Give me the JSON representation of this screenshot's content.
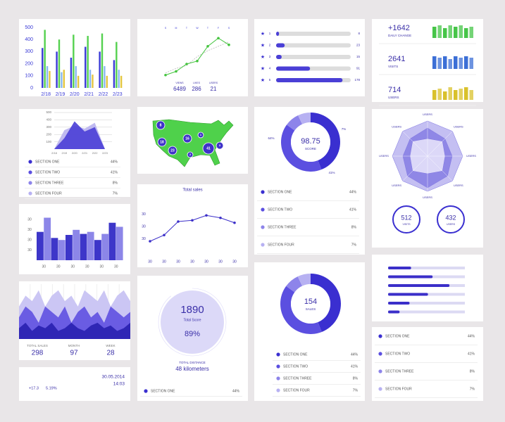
{
  "growth": {
    "type": "bar",
    "ylim": [
      0,
      500
    ],
    "yticks": [
      0,
      100,
      200,
      300,
      400,
      500
    ],
    "categories": [
      "2/18",
      "2/19",
      "2/20",
      "2/21",
      "2/22",
      "2/23"
    ],
    "series": [
      {
        "color": "#3a3ad6",
        "values": [
          330,
          300,
          250,
          340,
          300,
          230
        ]
      },
      {
        "color": "#55d14f",
        "values": [
          480,
          400,
          440,
          430,
          450,
          380
        ]
      },
      {
        "color": "#8ab8f2",
        "values": [
          180,
          130,
          180,
          150,
          180,
          150
        ]
      },
      {
        "color": "#e3c640",
        "values": [
          140,
          150,
          100,
          110,
          100,
          100
        ]
      }
    ]
  },
  "peaks": {
    "type": "area",
    "ylim": [
      0,
      500
    ],
    "yticks": [
      100,
      200,
      300,
      400,
      500
    ],
    "categories": [
      "2/18",
      "2/19",
      "2/20",
      "2/21",
      "2/22",
      "2/23"
    ],
    "series": [
      {
        "color": "#b9b3ee",
        "values": [
          0,
          260,
          320,
          280,
          360,
          0
        ]
      },
      {
        "color": "#4a3fd6",
        "values": [
          0,
          150,
          380,
          240,
          300,
          0
        ]
      }
    ],
    "legend": {
      "labels": [
        "SECTION ONE",
        "SECTION TWO",
        "SECTION THREE",
        "SECTION FOUR"
      ],
      "values": [
        44,
        41,
        8,
        7
      ],
      "value_labels": [
        "44%",
        "41%",
        "8%",
        "7%"
      ],
      "colors": [
        "#3a2fd0",
        "#5b4fe0",
        "#8d84ea",
        "#b7b1f2"
      ]
    }
  },
  "columns": {
    "type": "bar",
    "ylim": [
      0,
      50
    ],
    "yticks": [
      {
        "value": 10,
        "label": "30"
      },
      {
        "value": 20,
        "label": "30"
      },
      {
        "value": 30,
        "label": "30"
      },
      {
        "value": 40,
        "label": "30"
      }
    ],
    "categories": [
      "30",
      "30",
      "30",
      "30",
      "30",
      "30"
    ],
    "series": [
      {
        "color": "#3d36c9",
        "values": [
          28,
          22,
          25,
          26,
          20,
          37
        ]
      },
      {
        "color": "#8c86e8",
        "values": [
          42,
          20,
          30,
          28,
          26,
          33
        ]
      }
    ]
  },
  "waves": {
    "type": "area",
    "ylim": [
      0,
      10
    ],
    "series": [
      {
        "color": "#cbc6f4",
        "values": [
          6,
          8,
          7,
          9,
          6,
          8,
          9,
          7,
          8,
          6,
          9,
          8,
          7,
          9,
          6,
          8,
          9,
          7
        ]
      },
      {
        "color": "#6a5ce3",
        "values": [
          4,
          6,
          5,
          3,
          6,
          5,
          4,
          6,
          3,
          5,
          6,
          4,
          5,
          3,
          6,
          5,
          4,
          5
        ]
      },
      {
        "color": "#2f26b5",
        "values": [
          2,
          3,
          1.5,
          2.5,
          2,
          3,
          1.5,
          2,
          3,
          2,
          1.5,
          2.5,
          3,
          2,
          2.5,
          1.5,
          2,
          3
        ]
      }
    ],
    "stats": [
      {
        "label": "TOTAL SALES",
        "value": 298
      },
      {
        "label": "MONTH",
        "value": 97
      },
      {
        "label": "WEEK",
        "value": 28
      }
    ]
  },
  "ticker": {
    "date": "30.05.2014",
    "time": "14:03",
    "change": "+17.3",
    "percent": "5.19%"
  },
  "trend": {
    "type": "line",
    "categories": [
      "S",
      "M",
      "T",
      "W",
      "T",
      "F",
      "S"
    ],
    "ylim": [
      0,
      60
    ],
    "series": [
      {
        "color": "#44c43e",
        "values": [
          5,
          10,
          20,
          24,
          44,
          55,
          46
        ]
      },
      {
        "color": "#bbbbbb",
        "values": [
          8,
          14,
          18,
          30,
          38,
          44,
          50
        ]
      }
    ],
    "stats": [
      {
        "value": 6489,
        "label": "VIEWS"
      },
      {
        "value": 286,
        "label": "LIKES"
      },
      {
        "value": 21,
        "label": "USERS"
      }
    ]
  },
  "map": {
    "bubbles": [
      8,
      1,
      16,
      18,
      23,
      2,
      41,
      3
    ]
  },
  "sales": {
    "type": "line",
    "title": "Total sales",
    "ylim": [
      0,
      40
    ],
    "yticks": [
      {
        "value": 10,
        "label": "30"
      },
      {
        "value": 20,
        "label": "30"
      },
      {
        "value": 30,
        "label": "30"
      }
    ],
    "categories": [
      "30",
      "30",
      "30",
      "30",
      "30",
      "30",
      "30"
    ],
    "color": "#3b2fc9",
    "values": [
      8,
      13,
      24,
      25,
      29,
      27,
      23
    ]
  },
  "score": {
    "value": 1890,
    "label": "Total Score",
    "percent": 89,
    "percent_label": "89%",
    "distance_label": "TOTAL DISTANCE",
    "distance": "48 kilometers",
    "legend": {
      "labels": [
        "SECTION ONE"
      ],
      "values": [
        44
      ],
      "value_labels": [
        "44%"
      ],
      "colors": [
        "#3a2fd0"
      ]
    }
  },
  "ratings": {
    "type": "bar",
    "xlim": [
      0,
      200
    ],
    "categories": [
      "1",
      "2",
      "3",
      "4",
      "5"
    ],
    "values": [
      8,
      23,
      15,
      91,
      178
    ],
    "color": "#4a3fd6"
  },
  "score_donut": {
    "type": "pie",
    "value": 98.75,
    "label": "SCORE",
    "annotations": [
      "64%",
      "7%",
      "41%"
    ],
    "legend": {
      "labels": [
        "SECTION ONE",
        "SECTION TWO",
        "SECTION THREE",
        "SECTION FOUR"
      ],
      "values": [
        44,
        41,
        8,
        7
      ],
      "value_labels": [
        "44%",
        "41%",
        "8%",
        "7%"
      ],
      "colors": [
        "#3a2fd0",
        "#5b4fe0",
        "#8d84ea",
        "#b7b1f2"
      ]
    }
  },
  "sales_donut": {
    "type": "pie",
    "value": 154,
    "label": "SALES",
    "legend": {
      "labels": [
        "SECTION ONE",
        "SECTION TWO",
        "SECTION THREE",
        "SECTION FOUR"
      ],
      "values": [
        44,
        41,
        8,
        7
      ],
      "value_labels": [
        "44%",
        "41%",
        "8%",
        "7%"
      ],
      "colors": [
        "#3a2fd0",
        "#5b4fe0",
        "#8d84ea",
        "#b7b1f2"
      ]
    }
  },
  "kpis": {
    "ylim": [
      0,
      10
    ],
    "items": [
      {
        "value": "+1642",
        "label": "DAILY CHANGE",
        "color": "#46c548",
        "bars": [
          8,
          9,
          7,
          9,
          8,
          9,
          7,
          8
        ]
      },
      {
        "value": 2641,
        "label": "VISITS",
        "color": "#3c6fd6",
        "bars": [
          9,
          8,
          9,
          7,
          9,
          8,
          9,
          8
        ]
      },
      {
        "value": 714,
        "label": "USERS",
        "color": "#d9c12c",
        "bars": [
          7,
          8,
          6,
          9,
          7,
          8,
          9,
          7
        ]
      }
    ]
  },
  "radar": {
    "type": "radar",
    "rlim": [
      0,
      10
    ],
    "axes": [
      "USERS",
      "USERS",
      "USERS",
      "USERS",
      "USERS",
      "USERS",
      "USERS",
      "USERS"
    ],
    "series": [
      {
        "color": "#c4bff2",
        "values": [
          10,
          10,
          10,
          10,
          10,
          10,
          10,
          10
        ]
      },
      {
        "color": "#8f87e6",
        "values": [
          8,
          7,
          7,
          8,
          9,
          8,
          7,
          7
        ]
      },
      {
        "color": "#dcd8f8",
        "values": [
          5,
          6,
          5,
          6,
          5,
          6,
          5,
          6
        ]
      }
    ],
    "gauges": [
      {
        "value": 512,
        "label": "VISITS"
      },
      {
        "value": 432,
        "label": "USERS"
      }
    ]
  },
  "progress": {
    "type": "bar",
    "xlim": [
      0,
      100
    ],
    "values": [
      30,
      58,
      80,
      52,
      28,
      15
    ],
    "color": "#3b2fc9"
  },
  "sections": {
    "legend": {
      "labels": [
        "SECTION ONE",
        "SECTION TWO",
        "SECTION THREE",
        "SECTION FOUR"
      ],
      "values": [
        44,
        41,
        8,
        7
      ],
      "value_labels": [
        "44%",
        "41%",
        "8%",
        "7%"
      ],
      "colors": [
        "#3a2fd0",
        "#5b4fe0",
        "#8d84ea",
        "#b7b1f2"
      ]
    }
  }
}
